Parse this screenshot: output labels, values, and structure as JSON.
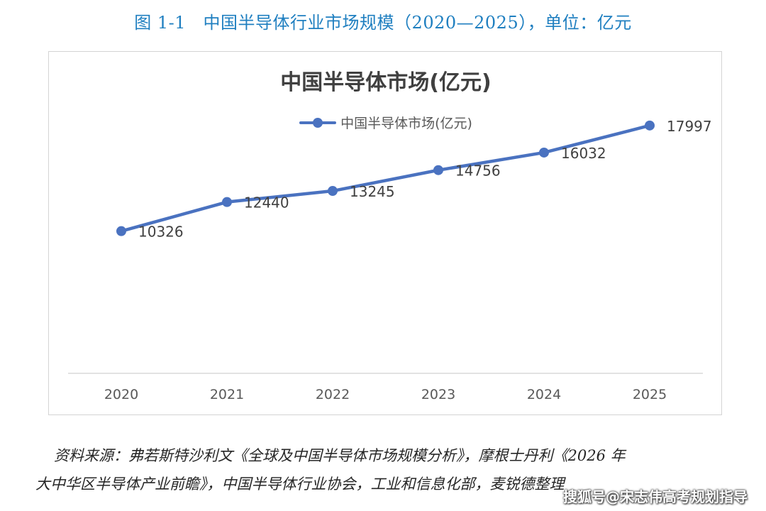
{
  "caption": "图 1-1　中国半导体行业市场规模（2020—2025），单位：亿元",
  "source_note": {
    "line1": "资料来源：弗若斯特沙利文《全球及中国半导体市场规模分析》，摩根士丹利《2026 年",
    "line2": "大中华区半导体产业前瞻》，中国半导体行业协会，工业和信息化部，麦锐德整理"
  },
  "watermark": "搜狐号@宋志伟高考规划指导",
  "colors": {
    "series": "#4a72c0",
    "caption": "#1f7fc0",
    "axis": "#d9d9d9",
    "label": "#404040"
  },
  "chart_data": {
    "type": "line",
    "title": "中国半导体市场(亿元)",
    "xlabel": "",
    "ylabel": "",
    "categories": [
      "2020",
      "2021",
      "2022",
      "2023",
      "2024",
      "2025"
    ],
    "series": [
      {
        "name": "中国半导体市场(亿元)",
        "values": [
          10326,
          12440,
          13245,
          14756,
          16032,
          17997
        ]
      }
    ],
    "ylim": [
      0,
      20000
    ],
    "grid": false,
    "legend": "top-center",
    "data_labels": true,
    "markers": "circle"
  }
}
